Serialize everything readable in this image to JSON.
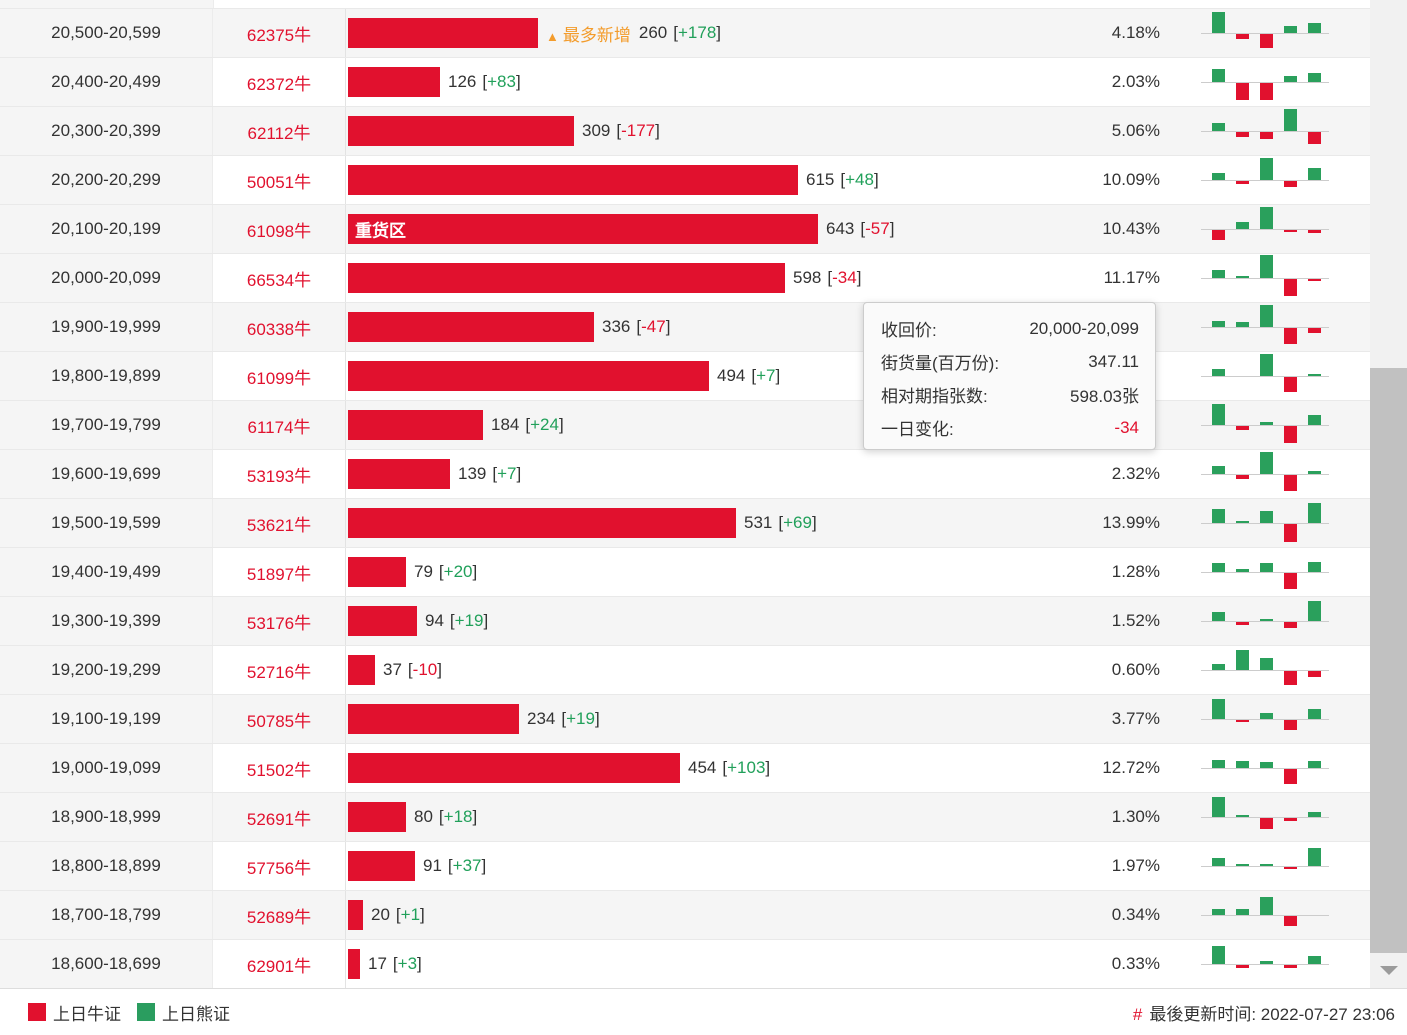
{
  "labels": {
    "most_new": "最多新增",
    "most_new_marker": "▲",
    "heavy_zone": "重货区"
  },
  "colors": {
    "bull_red": "#e1112e",
    "bear_green": "#2aa05c",
    "highlight_orange": "#f39c2c",
    "row_alt_bg": "#f5f5f5",
    "negative_text": "#e1112e",
    "positive_text": "#21a05a"
  },
  "table": {
    "rows": [
      {
        "range": "20,500-20,599",
        "code": "62375牛",
        "value": 260,
        "delta": "+178",
        "pct": "4.18%",
        "special": "most-new",
        "mini": [
          0.9,
          -0.25,
          -0.7,
          0.3,
          0.45
        ]
      },
      {
        "range": "20,400-20,499",
        "code": "62372牛",
        "value": 126,
        "delta": "+83",
        "pct": "2.03%",
        "special": "",
        "mini": [
          0.55,
          -0.85,
          -0.85,
          0.25,
          0.4
        ]
      },
      {
        "range": "20,300-20,399",
        "code": "62112牛",
        "value": 309,
        "delta": "-177",
        "pct": "5.06%",
        "special": "",
        "mini": [
          0.35,
          -0.25,
          -0.35,
          0.95,
          -0.6
        ]
      },
      {
        "range": "20,200-20,299",
        "code": "50051牛",
        "value": 615,
        "delta": "+48",
        "pct": "10.09%",
        "special": "",
        "mini": [
          0.3,
          -0.15,
          0.95,
          -0.3,
          0.5
        ]
      },
      {
        "range": "20,100-20,199",
        "code": "61098牛",
        "value": 643,
        "delta": "-57",
        "pct": "10.43%",
        "special": "heavy-zone",
        "mini": [
          -0.5,
          0.3,
          0.95,
          -0.12,
          -0.15
        ]
      },
      {
        "range": "20,000-20,099",
        "code": "66534牛",
        "value": 598,
        "delta": "-34",
        "pct": "11.17%",
        "special": "",
        "mini": [
          0.35,
          0.1,
          1,
          -0.85,
          -0.12
        ]
      },
      {
        "range": "19,900-19,999",
        "code": "60338牛",
        "value": 336,
        "delta": "-47",
        "pct": "",
        "special": "",
        "mini": [
          0.25,
          0.2,
          0.95,
          -0.8,
          -0.25
        ]
      },
      {
        "range": "19,800-19,899",
        "code": "61099牛",
        "value": 494,
        "delta": "+7",
        "pct": "",
        "special": "",
        "mini": [
          0.3,
          0,
          0.95,
          -0.75,
          0.1
        ]
      },
      {
        "range": "19,700-19,799",
        "code": "61174牛",
        "value": 184,
        "delta": "+24",
        "pct": "",
        "special": "",
        "mini": [
          0.9,
          -0.2,
          0.12,
          -0.85,
          0.45
        ]
      },
      {
        "range": "19,600-19,699",
        "code": "53193牛",
        "value": 139,
        "delta": "+7",
        "pct": "2.32%",
        "special": "",
        "mini": [
          0.35,
          -0.2,
          0.95,
          -0.8,
          0.15
        ]
      },
      {
        "range": "19,500-19,599",
        "code": "53621牛",
        "value": 531,
        "delta": "+69",
        "pct": "13.99%",
        "special": "",
        "mini": [
          0.6,
          0.08,
          0.5,
          -0.9,
          0.85
        ]
      },
      {
        "range": "19,400-19,499",
        "code": "51897牛",
        "value": 79,
        "delta": "+20",
        "pct": "1.28%",
        "special": "",
        "mini": [
          0.4,
          0.15,
          0.4,
          -0.8,
          0.45
        ]
      },
      {
        "range": "19,300-19,399",
        "code": "53176牛",
        "value": 94,
        "delta": "+19",
        "pct": "1.52%",
        "special": "",
        "mini": [
          0.4,
          -0.15,
          0.08,
          -0.3,
          0.85
        ]
      },
      {
        "range": "19,200-19,299",
        "code": "52716牛",
        "value": 37,
        "delta": "-10",
        "pct": "0.60%",
        "special": "",
        "mini": [
          0.25,
          0.85,
          0.5,
          -0.7,
          -0.3
        ]
      },
      {
        "range": "19,100-19,199",
        "code": "50785牛",
        "value": 234,
        "delta": "+19",
        "pct": "3.77%",
        "special": "",
        "mini": [
          0.85,
          -0.1,
          0.25,
          -0.5,
          0.45
        ]
      },
      {
        "range": "19,000-19,099",
        "code": "51502牛",
        "value": 454,
        "delta": "+103",
        "pct": "12.72%",
        "special": "",
        "mini": [
          0.35,
          0.3,
          0.25,
          -0.75,
          0.3
        ]
      },
      {
        "range": "18,900-18,999",
        "code": "52691牛",
        "value": 80,
        "delta": "+18",
        "pct": "1.30%",
        "special": "",
        "mini": [
          0.85,
          0.08,
          -0.55,
          -0.15,
          0.2
        ]
      },
      {
        "range": "18,800-18,899",
        "code": "57756牛",
        "value": 91,
        "delta": "+37",
        "pct": "1.97%",
        "special": "",
        "mini": [
          0.35,
          0.08,
          0.08,
          -0.12,
          0.8
        ]
      },
      {
        "range": "18,700-18,799",
        "code": "52689牛",
        "value": 20,
        "delta": "+1",
        "pct": "0.34%",
        "special": "",
        "mini": [
          0.25,
          0.25,
          0.8,
          -0.5,
          0
        ]
      },
      {
        "range": "18,600-18,699",
        "code": "62901牛",
        "value": 17,
        "delta": "+3",
        "pct": "0.33%",
        "special": "",
        "mini": [
          0.8,
          -0.15,
          0.15,
          -0.15,
          0.35
        ]
      }
    ]
  },
  "tooltip": {
    "rows": [
      {
        "label": "收回价:",
        "value": "20,000-20,099"
      },
      {
        "label": "街货量(百万份):",
        "value": "347.11"
      },
      {
        "label": "相对期指张数:",
        "value": "598.03张"
      },
      {
        "label": "一日变化:",
        "value": "-34"
      }
    ]
  },
  "footer": {
    "legend": [
      {
        "label": "上日牛证",
        "color": "#e1112e"
      },
      {
        "label": "上日熊证",
        "color": "#2a9d5f"
      }
    ],
    "updated_hash": "#",
    "updated_text": "最後更新时间: 2022-07-27 23:06"
  },
  "chart_data": {
    "type": "bar",
    "orientation": "horizontal",
    "categories": [
      "20,500-20,599",
      "20,400-20,499",
      "20,300-20,399",
      "20,200-20,299",
      "20,100-20,199",
      "20,000-20,099",
      "19,900-19,999",
      "19,800-19,899",
      "19,700-19,799",
      "19,600-19,699",
      "19,500-19,599",
      "19,400-19,499",
      "19,300-19,399",
      "19,200-19,299",
      "19,100-19,199",
      "19,000-19,099",
      "18,900-18,999",
      "18,800-18,899",
      "18,700-18,799",
      "18,600-18,699"
    ],
    "values": [
      260,
      126,
      309,
      615,
      643,
      598,
      336,
      494,
      184,
      139,
      531,
      79,
      94,
      37,
      234,
      454,
      80,
      91,
      20,
      17
    ],
    "one_day_change": [
      178,
      83,
      -177,
      48,
      -57,
      -34,
      -47,
      7,
      24,
      7,
      69,
      20,
      19,
      -10,
      19,
      103,
      18,
      37,
      1,
      3
    ],
    "percentages": [
      "4.18%",
      "2.03%",
      "5.06%",
      "10.09%",
      "10.43%",
      "11.17%",
      null,
      null,
      null,
      "2.32%",
      "13.99%",
      "1.28%",
      "1.52%",
      "0.60%",
      "3.77%",
      "12.72%",
      "1.30%",
      "1.97%",
      "0.34%",
      "0.33%"
    ],
    "legend_entries": [
      "上日牛证",
      "上日熊证"
    ],
    "annotations": [
      "最多新增 (row 20,500-20,599)",
      "重货区 (row 20,100-20,199)"
    ]
  }
}
